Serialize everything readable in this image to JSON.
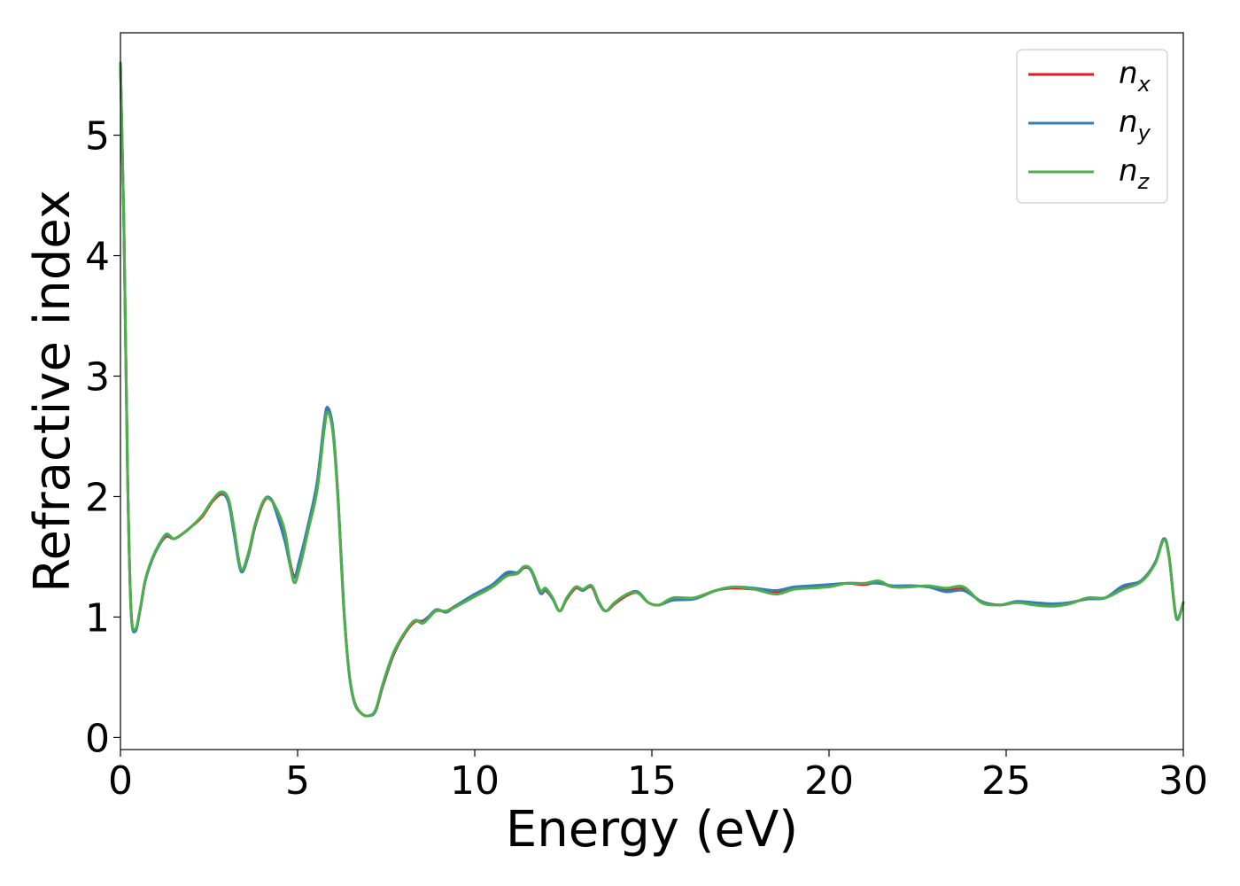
{
  "chart_data": {
    "type": "line",
    "title": "",
    "xlabel": "Energy (eV)",
    "ylabel": "Refractive index",
    "xlim": [
      0,
      30
    ],
    "ylim": [
      -0.1,
      5.85
    ],
    "xticks": [
      0,
      5,
      10,
      15,
      20,
      25,
      30
    ],
    "yticks": [
      0,
      1,
      2,
      3,
      4,
      5
    ],
    "grid": false,
    "legend_position": "top-right",
    "series": [
      {
        "name": "n_x",
        "label_base": "n",
        "label_sub": "x",
        "color": "#e41a1c",
        "points": [
          [
            0.0,
            5.6
          ],
          [
            0.1,
            4.2
          ],
          [
            0.2,
            2.2
          ],
          [
            0.3,
            1.05
          ],
          [
            0.42,
            0.89
          ],
          [
            0.55,
            1.05
          ],
          [
            0.7,
            1.3
          ],
          [
            0.9,
            1.48
          ],
          [
            1.1,
            1.6
          ],
          [
            1.3,
            1.67
          ],
          [
            1.5,
            1.65
          ],
          [
            1.7,
            1.68
          ],
          [
            2.0,
            1.75
          ],
          [
            2.3,
            1.83
          ],
          [
            2.6,
            1.96
          ],
          [
            2.85,
            2.02
          ],
          [
            3.05,
            1.96
          ],
          [
            3.2,
            1.72
          ],
          [
            3.4,
            1.39
          ],
          [
            3.6,
            1.5
          ],
          [
            3.8,
            1.75
          ],
          [
            4.05,
            1.96
          ],
          [
            4.25,
            1.98
          ],
          [
            4.45,
            1.85
          ],
          [
            4.65,
            1.66
          ],
          [
            4.88,
            1.35
          ],
          [
            5.05,
            1.45
          ],
          [
            5.3,
            1.75
          ],
          [
            5.55,
            2.1
          ],
          [
            5.75,
            2.6
          ],
          [
            5.85,
            2.72
          ],
          [
            6.0,
            2.55
          ],
          [
            6.15,
            1.95
          ],
          [
            6.3,
            1.1
          ],
          [
            6.45,
            0.55
          ],
          [
            6.6,
            0.3
          ],
          [
            6.8,
            0.2
          ],
          [
            7.0,
            0.18
          ],
          [
            7.2,
            0.22
          ],
          [
            7.4,
            0.42
          ],
          [
            7.7,
            0.68
          ],
          [
            8.0,
            0.85
          ],
          [
            8.3,
            0.96
          ],
          [
            8.55,
            0.97
          ],
          [
            8.9,
            1.05
          ],
          [
            9.2,
            1.05
          ],
          [
            9.5,
            1.1
          ],
          [
            10.0,
            1.18
          ],
          [
            10.5,
            1.26
          ],
          [
            10.9,
            1.35
          ],
          [
            11.2,
            1.36
          ],
          [
            11.4,
            1.41
          ],
          [
            11.6,
            1.38
          ],
          [
            11.85,
            1.2
          ],
          [
            12.0,
            1.22
          ],
          [
            12.2,
            1.15
          ],
          [
            12.4,
            1.05
          ],
          [
            12.6,
            1.15
          ],
          [
            12.85,
            1.24
          ],
          [
            13.05,
            1.22
          ],
          [
            13.3,
            1.25
          ],
          [
            13.5,
            1.12
          ],
          [
            13.7,
            1.05
          ],
          [
            13.95,
            1.11
          ],
          [
            14.3,
            1.18
          ],
          [
            14.6,
            1.2
          ],
          [
            14.9,
            1.12
          ],
          [
            15.2,
            1.1
          ],
          [
            15.6,
            1.15
          ],
          [
            16.2,
            1.16
          ],
          [
            16.8,
            1.22
          ],
          [
            17.3,
            1.24
          ],
          [
            17.9,
            1.23
          ],
          [
            18.5,
            1.21
          ],
          [
            19.0,
            1.24
          ],
          [
            19.5,
            1.25
          ],
          [
            20.0,
            1.26
          ],
          [
            20.5,
            1.28
          ],
          [
            21.0,
            1.27
          ],
          [
            21.4,
            1.29
          ],
          [
            21.8,
            1.25
          ],
          [
            22.3,
            1.26
          ],
          [
            22.8,
            1.25
          ],
          [
            23.3,
            1.22
          ],
          [
            23.8,
            1.23
          ],
          [
            24.3,
            1.13
          ],
          [
            24.8,
            1.1
          ],
          [
            25.3,
            1.12
          ],
          [
            25.8,
            1.11
          ],
          [
            26.3,
            1.1
          ],
          [
            26.8,
            1.12
          ],
          [
            27.3,
            1.15
          ],
          [
            27.8,
            1.16
          ],
          [
            28.3,
            1.24
          ],
          [
            28.8,
            1.3
          ],
          [
            29.2,
            1.45
          ],
          [
            29.45,
            1.65
          ],
          [
            29.6,
            1.5
          ],
          [
            29.8,
            1.0
          ],
          [
            30.0,
            1.12
          ]
        ]
      },
      {
        "name": "n_y",
        "label_base": "n",
        "label_sub": "y",
        "color": "#377eb8",
        "points": [
          [
            0.0,
            5.6
          ],
          [
            0.1,
            4.2
          ],
          [
            0.2,
            2.2
          ],
          [
            0.3,
            1.05
          ],
          [
            0.42,
            0.88
          ],
          [
            0.55,
            1.05
          ],
          [
            0.7,
            1.3
          ],
          [
            0.9,
            1.48
          ],
          [
            1.1,
            1.6
          ],
          [
            1.3,
            1.68
          ],
          [
            1.5,
            1.65
          ],
          [
            1.7,
            1.68
          ],
          [
            2.0,
            1.75
          ],
          [
            2.3,
            1.84
          ],
          [
            2.6,
            1.97
          ],
          [
            2.85,
            2.03
          ],
          [
            3.05,
            1.95
          ],
          [
            3.2,
            1.7
          ],
          [
            3.4,
            1.38
          ],
          [
            3.6,
            1.5
          ],
          [
            3.8,
            1.76
          ],
          [
            4.05,
            1.97
          ],
          [
            4.25,
            1.98
          ],
          [
            4.45,
            1.82
          ],
          [
            4.65,
            1.62
          ],
          [
            4.88,
            1.33
          ],
          [
            5.05,
            1.47
          ],
          [
            5.3,
            1.77
          ],
          [
            5.55,
            2.12
          ],
          [
            5.75,
            2.62
          ],
          [
            5.85,
            2.74
          ],
          [
            6.0,
            2.56
          ],
          [
            6.15,
            1.95
          ],
          [
            6.3,
            1.1
          ],
          [
            6.45,
            0.54
          ],
          [
            6.6,
            0.29
          ],
          [
            6.8,
            0.2
          ],
          [
            7.0,
            0.18
          ],
          [
            7.2,
            0.22
          ],
          [
            7.4,
            0.43
          ],
          [
            7.7,
            0.69
          ],
          [
            8.0,
            0.86
          ],
          [
            8.3,
            0.97
          ],
          [
            8.55,
            0.96
          ],
          [
            8.9,
            1.06
          ],
          [
            9.2,
            1.04
          ],
          [
            9.5,
            1.1
          ],
          [
            10.0,
            1.19
          ],
          [
            10.5,
            1.27
          ],
          [
            10.9,
            1.37
          ],
          [
            11.2,
            1.37
          ],
          [
            11.4,
            1.42
          ],
          [
            11.6,
            1.38
          ],
          [
            11.85,
            1.2
          ],
          [
            12.0,
            1.23
          ],
          [
            12.2,
            1.15
          ],
          [
            12.4,
            1.05
          ],
          [
            12.6,
            1.16
          ],
          [
            12.85,
            1.25
          ],
          [
            13.05,
            1.22
          ],
          [
            13.3,
            1.26
          ],
          [
            13.5,
            1.12
          ],
          [
            13.7,
            1.05
          ],
          [
            13.95,
            1.12
          ],
          [
            14.3,
            1.19
          ],
          [
            14.6,
            1.21
          ],
          [
            14.9,
            1.12
          ],
          [
            15.2,
            1.1
          ],
          [
            15.6,
            1.14
          ],
          [
            16.2,
            1.15
          ],
          [
            16.8,
            1.22
          ],
          [
            17.3,
            1.25
          ],
          [
            17.9,
            1.24
          ],
          [
            18.5,
            1.22
          ],
          [
            19.0,
            1.25
          ],
          [
            19.5,
            1.26
          ],
          [
            20.0,
            1.27
          ],
          [
            20.5,
            1.28
          ],
          [
            21.0,
            1.28
          ],
          [
            21.4,
            1.28
          ],
          [
            21.8,
            1.26
          ],
          [
            22.3,
            1.26
          ],
          [
            22.8,
            1.25
          ],
          [
            23.3,
            1.21
          ],
          [
            23.8,
            1.22
          ],
          [
            24.3,
            1.13
          ],
          [
            24.8,
            1.1
          ],
          [
            25.3,
            1.13
          ],
          [
            25.8,
            1.12
          ],
          [
            26.3,
            1.11
          ],
          [
            26.8,
            1.12
          ],
          [
            27.3,
            1.15
          ],
          [
            27.8,
            1.16
          ],
          [
            28.3,
            1.26
          ],
          [
            28.8,
            1.3
          ],
          [
            29.2,
            1.45
          ],
          [
            29.45,
            1.65
          ],
          [
            29.6,
            1.5
          ],
          [
            29.8,
            1.0
          ],
          [
            30.0,
            1.12
          ]
        ]
      },
      {
        "name": "n_z",
        "label_base": "n",
        "label_sub": "z",
        "color": "#4daf4a",
        "points": [
          [
            0.0,
            5.6
          ],
          [
            0.1,
            4.2
          ],
          [
            0.2,
            2.2
          ],
          [
            0.3,
            1.06
          ],
          [
            0.42,
            0.9
          ],
          [
            0.55,
            1.06
          ],
          [
            0.7,
            1.31
          ],
          [
            0.9,
            1.49
          ],
          [
            1.1,
            1.61
          ],
          [
            1.3,
            1.69
          ],
          [
            1.5,
            1.65
          ],
          [
            1.7,
            1.68
          ],
          [
            2.0,
            1.75
          ],
          [
            2.3,
            1.84
          ],
          [
            2.6,
            1.97
          ],
          [
            2.85,
            2.04
          ],
          [
            3.05,
            1.98
          ],
          [
            3.2,
            1.75
          ],
          [
            3.4,
            1.4
          ],
          [
            3.6,
            1.52
          ],
          [
            3.8,
            1.77
          ],
          [
            4.05,
            1.97
          ],
          [
            4.25,
            1.97
          ],
          [
            4.45,
            1.87
          ],
          [
            4.65,
            1.7
          ],
          [
            4.88,
            1.3
          ],
          [
            5.05,
            1.4
          ],
          [
            5.3,
            1.72
          ],
          [
            5.55,
            2.05
          ],
          [
            5.75,
            2.55
          ],
          [
            5.85,
            2.7
          ],
          [
            6.0,
            2.52
          ],
          [
            6.15,
            1.92
          ],
          [
            6.3,
            1.08
          ],
          [
            6.45,
            0.55
          ],
          [
            6.6,
            0.3
          ],
          [
            6.8,
            0.2
          ],
          [
            7.0,
            0.18
          ],
          [
            7.2,
            0.23
          ],
          [
            7.4,
            0.44
          ],
          [
            7.7,
            0.7
          ],
          [
            8.0,
            0.86
          ],
          [
            8.3,
            0.97
          ],
          [
            8.55,
            0.95
          ],
          [
            8.9,
            1.05
          ],
          [
            9.2,
            1.05
          ],
          [
            9.5,
            1.09
          ],
          [
            10.0,
            1.17
          ],
          [
            10.5,
            1.25
          ],
          [
            10.9,
            1.34
          ],
          [
            11.2,
            1.36
          ],
          [
            11.4,
            1.42
          ],
          [
            11.6,
            1.39
          ],
          [
            11.85,
            1.22
          ],
          [
            12.0,
            1.24
          ],
          [
            12.2,
            1.16
          ],
          [
            12.4,
            1.05
          ],
          [
            12.6,
            1.16
          ],
          [
            12.85,
            1.25
          ],
          [
            13.05,
            1.23
          ],
          [
            13.3,
            1.26
          ],
          [
            13.5,
            1.13
          ],
          [
            13.7,
            1.05
          ],
          [
            13.95,
            1.12
          ],
          [
            14.3,
            1.19
          ],
          [
            14.6,
            1.2
          ],
          [
            14.9,
            1.12
          ],
          [
            15.2,
            1.1
          ],
          [
            15.6,
            1.16
          ],
          [
            16.2,
            1.16
          ],
          [
            16.8,
            1.22
          ],
          [
            17.3,
            1.25
          ],
          [
            17.9,
            1.23
          ],
          [
            18.5,
            1.19
          ],
          [
            19.0,
            1.23
          ],
          [
            19.5,
            1.24
          ],
          [
            20.0,
            1.25
          ],
          [
            20.5,
            1.28
          ],
          [
            21.0,
            1.28
          ],
          [
            21.4,
            1.3
          ],
          [
            21.8,
            1.25
          ],
          [
            22.3,
            1.25
          ],
          [
            22.8,
            1.26
          ],
          [
            23.3,
            1.24
          ],
          [
            23.8,
            1.25
          ],
          [
            24.3,
            1.12
          ],
          [
            24.8,
            1.1
          ],
          [
            25.3,
            1.12
          ],
          [
            25.8,
            1.1
          ],
          [
            26.3,
            1.09
          ],
          [
            26.8,
            1.11
          ],
          [
            27.3,
            1.16
          ],
          [
            27.8,
            1.16
          ],
          [
            28.3,
            1.23
          ],
          [
            28.8,
            1.29
          ],
          [
            29.2,
            1.44
          ],
          [
            29.45,
            1.64
          ],
          [
            29.6,
            1.49
          ],
          [
            29.8,
            0.99
          ],
          [
            30.0,
            1.12
          ]
        ]
      }
    ]
  }
}
